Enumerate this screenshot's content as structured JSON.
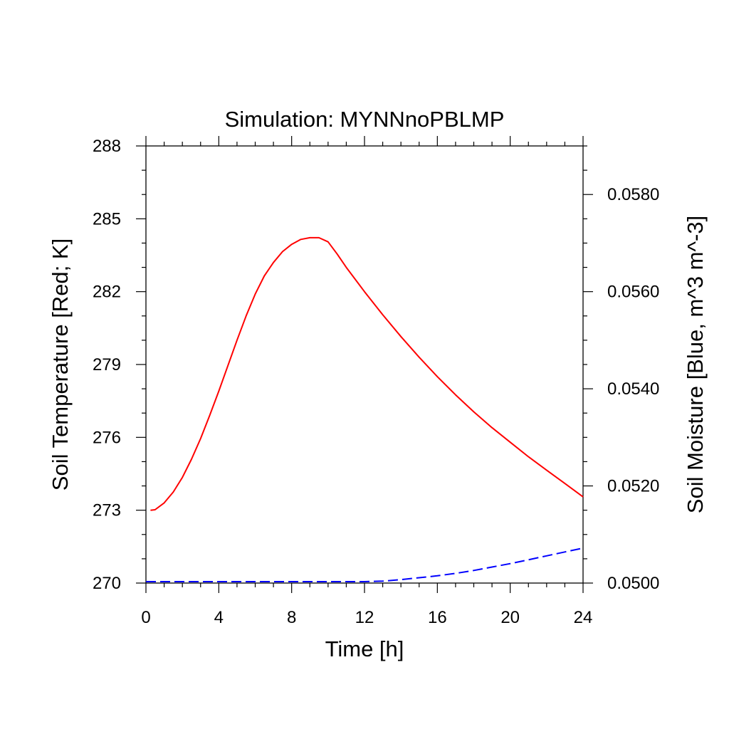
{
  "chart_data": {
    "type": "line",
    "title": "Simulation: MYNNnoPBLMP",
    "xlabel": "Time [h]",
    "ylabel": "Soil Temperature [Red; K]",
    "y2label": "Soil Moisture [Blue, m^3 m^-3]",
    "xlim": [
      0,
      24
    ],
    "ylim": [
      270,
      288
    ],
    "y2lim": [
      0.05,
      0.059
    ],
    "x_ticks": [
      0,
      4,
      8,
      12,
      16,
      20,
      24
    ],
    "x_tick_labels": [
      "0",
      "4",
      "8",
      "12",
      "16",
      "20",
      "24"
    ],
    "y_ticks": [
      270,
      273,
      276,
      279,
      282,
      285,
      288
    ],
    "y_tick_labels": [
      "270",
      "273",
      "276",
      "279",
      "282",
      "285",
      "288"
    ],
    "y2_ticks": [
      0.05,
      0.052,
      0.054,
      0.056,
      0.058
    ],
    "y2_tick_labels": [
      "0.0500",
      "0.0520",
      "0.0540",
      "0.0560",
      "0.0580"
    ],
    "grid": false,
    "series": [
      {
        "axis": "left",
        "color": "#ff0000",
        "style": "solid",
        "x": [
          0.25,
          0.5,
          1,
          1.5,
          2,
          2.5,
          3,
          3.5,
          4,
          4.5,
          5,
          5.5,
          6,
          6.5,
          7,
          7.5,
          8,
          8.5,
          9,
          9.5,
          10,
          10.5,
          11,
          12,
          13,
          14,
          15,
          16,
          17,
          18,
          19,
          20,
          21,
          22,
          23,
          24
        ],
        "y": [
          273.0,
          273.02,
          273.3,
          273.75,
          274.35,
          275.1,
          275.95,
          276.9,
          277.9,
          278.95,
          280.0,
          281.0,
          281.9,
          282.65,
          283.2,
          283.65,
          283.95,
          284.15,
          284.22,
          284.22,
          284.05,
          283.55,
          283.0,
          282.0,
          281.05,
          280.15,
          279.3,
          278.5,
          277.75,
          277.05,
          276.4,
          275.8,
          275.2,
          274.65,
          274.1,
          273.55
        ]
      },
      {
        "axis": "right",
        "color": "#0000ff",
        "style": "dashed",
        "x": [
          0,
          2,
          4,
          6,
          8,
          10,
          12,
          13,
          14,
          15,
          16,
          17,
          18,
          19,
          20,
          21,
          22,
          23,
          24
        ],
        "y": [
          0.05003,
          0.05003,
          0.05003,
          0.05003,
          0.05003,
          0.05003,
          0.05003,
          0.05004,
          0.05007,
          0.05011,
          0.05015,
          0.0502,
          0.05026,
          0.05033,
          0.0504,
          0.05048,
          0.05056,
          0.05064,
          0.05072
        ]
      }
    ]
  }
}
